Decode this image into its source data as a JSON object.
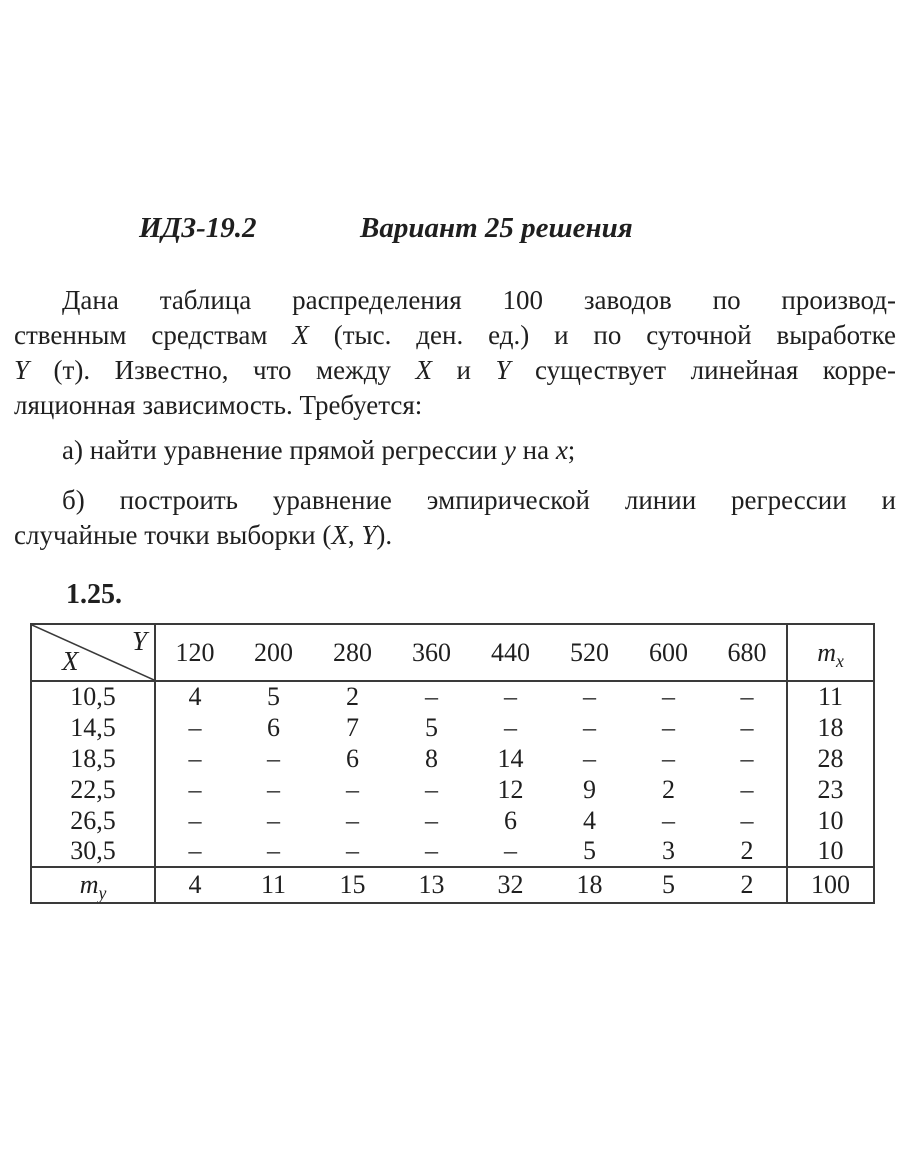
{
  "header": {
    "code": "ИДЗ-19.2",
    "variant": "Вариант 25 решения"
  },
  "problem": {
    "paragraph": {
      "l1": [
        "Дана таблица распределения 100 заводов по производ-"
      ],
      "l2": [
        "ственным средствам ",
        "X",
        " (тыс. ден. ед.) и по суточной выработке"
      ],
      "l3": [
        "Y",
        " (т). Известно, что между ",
        "X",
        " и ",
        "Y",
        " существует линейная корре-"
      ],
      "l4": [
        "ляционная зависимость. Требуется:"
      ]
    },
    "task_a": [
      "а) найти уравнение прямой регрессии ",
      "y",
      " на ",
      "x",
      ";"
    ],
    "task_b": {
      "l1": [
        "б) построить уравнение эмпирической линии регрессии и"
      ],
      "l2": [
        "случайные точки выборки (",
        "X",
        ", ",
        "Y",
        ")."
      ]
    }
  },
  "table": {
    "number": "1.25.",
    "corner": {
      "y": "Y",
      "x": "X"
    },
    "col_headers": [
      "120",
      "200",
      "280",
      "360",
      "440",
      "520",
      "600",
      "680"
    ],
    "mx_header": {
      "base": "m",
      "sub": "x"
    },
    "my_header": {
      "base": "m",
      "sub": "y"
    },
    "rows": [
      {
        "x": "10,5",
        "cells": [
          "4",
          "5",
          "2",
          "–",
          "–",
          "–",
          "–",
          "–"
        ],
        "mx": "11"
      },
      {
        "x": "14,5",
        "cells": [
          "–",
          "6",
          "7",
          "5",
          "–",
          "–",
          "–",
          "–"
        ],
        "mx": "18"
      },
      {
        "x": "18,5",
        "cells": [
          "–",
          "–",
          "6",
          "8",
          "14",
          "–",
          "–",
          "–"
        ],
        "mx": "28"
      },
      {
        "x": "22,5",
        "cells": [
          "–",
          "–",
          "–",
          "–",
          "12",
          "9",
          "2",
          "–"
        ],
        "mx": "23"
      },
      {
        "x": "26,5",
        "cells": [
          "–",
          "–",
          "–",
          "–",
          "6",
          "4",
          "–",
          "–"
        ],
        "mx": "10"
      },
      {
        "x": "30,5",
        "cells": [
          "–",
          "–",
          "–",
          "–",
          "–",
          "5",
          "3",
          "2"
        ],
        "mx": "10"
      }
    ],
    "totals": {
      "cells": [
        "4",
        "11",
        "15",
        "13",
        "32",
        "18",
        "5",
        "2"
      ],
      "total": "100"
    }
  },
  "colors": {
    "text": "#1f1f1f",
    "border": "#3a3a3a",
    "background": "#ffffff"
  }
}
